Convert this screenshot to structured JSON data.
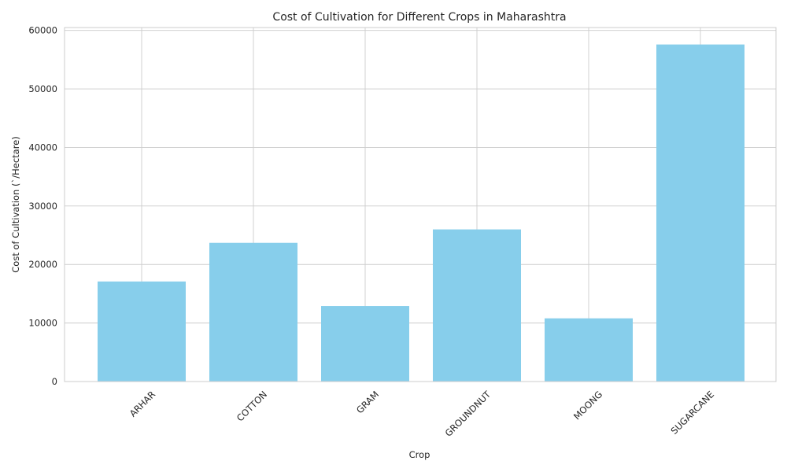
{
  "chart_data": {
    "type": "bar",
    "title": "Cost of Cultivation for Different Crops in Maharashtra",
    "xlabel": "Crop",
    "ylabel": "Cost of Cultivation (`/Hectare)",
    "categories": [
      "ARHAR",
      "COTTON",
      "GRAM",
      "GROUNDNUT",
      "MOONG",
      "SUGARCANE"
    ],
    "values": [
      17100,
      23700,
      12900,
      26000,
      10800,
      57600
    ],
    "ylim": [
      0,
      60500
    ],
    "yticks": [
      0,
      10000,
      20000,
      30000,
      40000,
      50000,
      60000
    ],
    "grid": true,
    "bar_color": "#87CEEB",
    "grid_color": "#cccccc",
    "text_color": "#262626"
  }
}
